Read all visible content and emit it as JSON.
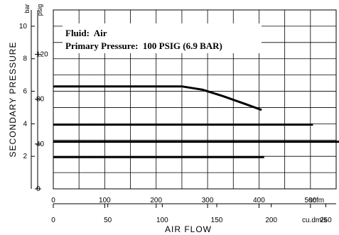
{
  "chart_data": {
    "type": "line",
    "annotations": [
      "Fluid:  Air",
      "Primary Pressure:  100 PSIG (6.9 BAR)"
    ],
    "ylabel": "SECONDARY  PRESSURE",
    "xlabel": "AIR  FLOW",
    "y_units": {
      "bar": "bar",
      "psig": "psig"
    },
    "x_units": {
      "scfm": "scfm",
      "metric": "cu.dm/s"
    },
    "ylim_bar": [
      0,
      11
    ],
    "xlim_scfm": [
      0,
      550
    ],
    "grid": true,
    "y_ticks_bar": [
      "2",
      "4",
      "6",
      "8",
      "10"
    ],
    "y_ticks_psig": [
      "0",
      "40",
      "80",
      "120"
    ],
    "x_ticks_scfm": [
      "0",
      "100",
      "200",
      "300",
      "400",
      "500"
    ],
    "x_ticks_metric": [
      "0",
      "50",
      "100",
      "150",
      "200",
      "250"
    ],
    "x_tick_values_scfm": [
      0,
      100,
      200,
      300,
      400,
      500
    ],
    "x_tick_values_metric": [
      0,
      50,
      100,
      150,
      200,
      250
    ],
    "series": [
      {
        "values": [
          [
            0,
            6.3
          ],
          [
            250,
            6.3
          ],
          [
            290,
            6.1
          ],
          [
            330,
            5.7
          ],
          [
            375,
            5.2
          ],
          [
            405,
            4.85
          ]
        ]
      },
      {
        "values": [
          [
            0,
            3.95
          ],
          [
            505,
            3.95
          ]
        ]
      },
      {
        "values": [
          [
            0,
            2.9
          ],
          [
            556,
            2.9
          ]
        ]
      },
      {
        "values": [
          [
            0,
            1.95
          ],
          [
            410,
            1.95
          ]
        ]
      }
    ]
  }
}
